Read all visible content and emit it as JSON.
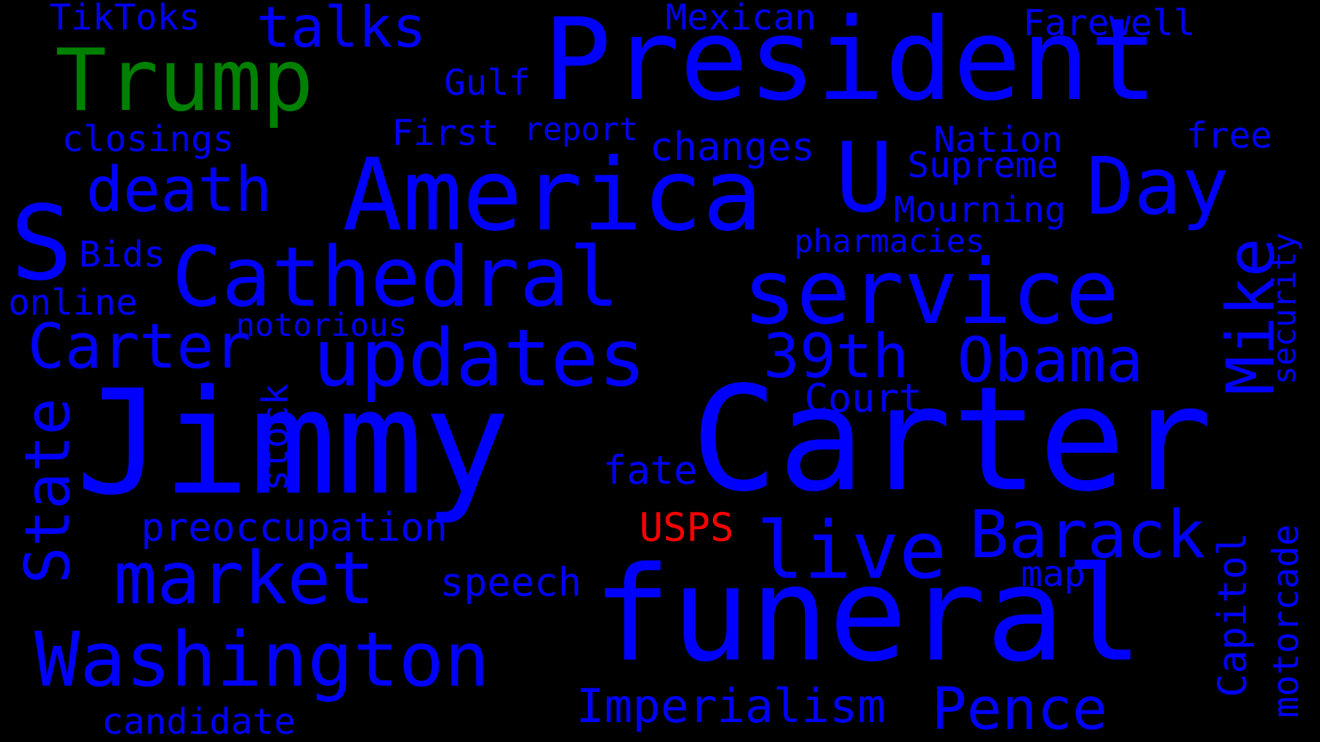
{
  "colors": {
    "background": "#000000",
    "default_word": "#0000ff",
    "highlight_green": "#008000",
    "highlight_red": "#ff0000"
  },
  "words": {
    "jimmy": "Jimmy",
    "carter_big": "Carter",
    "president": "President",
    "funeral": "funeral",
    "america": "America",
    "service": "service",
    "cathedral": "Cathedral",
    "updates": "updates",
    "washington": "Washington",
    "market": "market",
    "trump": "Trump",
    "carter_small": "Carter",
    "obama": "Obama",
    "th39": "39th",
    "day": "Day",
    "u": "U",
    "s": "S",
    "death": "death",
    "live": "live",
    "barack": "Barack",
    "pence": "Pence",
    "mike": "Mike",
    "state": "State",
    "imperialism": "Imperialism",
    "talks": "talks",
    "tiktoks": "TikToks",
    "mexican": "Mexican",
    "farewell": "Farewell",
    "gulf": "Gulf",
    "closings": "closings",
    "first": "First",
    "report": "report",
    "changes": "changes",
    "nation": "Nation",
    "free": "free",
    "supreme": "Supreme",
    "mourning": "Mourning",
    "pharmacies": "pharmacies",
    "bids": "Bids",
    "online": "online",
    "notorious": "notorious",
    "security": "security",
    "court": "Court",
    "stock": "stock",
    "fate": "fate",
    "usps": "USPS",
    "preoccupation": "preoccupation",
    "speech": "speech",
    "map": "map",
    "capitol": "Capitol",
    "motorcade": "motorcade",
    "candidate": "candidate"
  }
}
